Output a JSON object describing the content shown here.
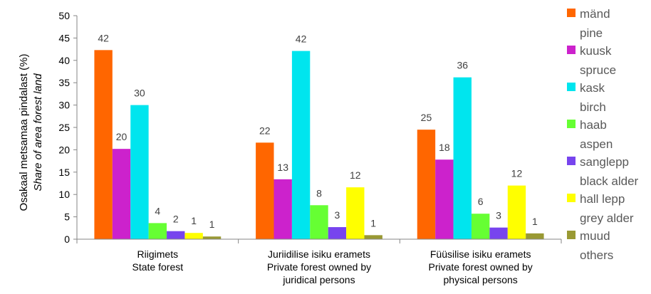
{
  "chart_data": {
    "type": "bar",
    "ylabel": "Osakaal metsamaa pindalast (%)",
    "ylabel_secondary": "Share of area forest land",
    "ylim": [
      0,
      50
    ],
    "yticks": [
      0,
      5,
      10,
      15,
      20,
      25,
      30,
      35,
      40,
      45,
      50
    ],
    "grid": false,
    "legend_position": "right",
    "categories": [
      [
        "Riigimets",
        "State forest"
      ],
      [
        "Juriidilise isiku eramets",
        "Private forest owned by",
        "juridical persons"
      ],
      [
        "Füüsilise isiku eramets",
        "Private forest owned by",
        "physical persons"
      ]
    ],
    "series": [
      {
        "name": "mänd",
        "name_en": "pine",
        "color": "#ff6600",
        "values": [
          42.3,
          21.6,
          24.5
        ],
        "labels": [
          "42",
          "22",
          "25"
        ]
      },
      {
        "name": "kuusk",
        "name_en": "spruce",
        "color": "#cc22cc",
        "values": [
          20.2,
          13.4,
          17.8
        ],
        "labels": [
          "20",
          "13",
          "18"
        ]
      },
      {
        "name": "kask",
        "name_en": "birch",
        "color": "#00e5ee",
        "values": [
          30.0,
          42.1,
          36.2
        ],
        "labels": [
          "30",
          "42",
          "36"
        ]
      },
      {
        "name": "haab",
        "name_en": "aspen",
        "color": "#66ff33",
        "values": [
          3.6,
          7.6,
          5.7
        ],
        "labels": [
          "4",
          "8",
          "6"
        ]
      },
      {
        "name": "sanglepp",
        "name_en": "black alder",
        "color": "#7744ee",
        "values": [
          1.8,
          2.7,
          2.6
        ],
        "labels": [
          "2",
          "3",
          "3"
        ]
      },
      {
        "name": "hall lepp",
        "name_en": "grey alder",
        "color": "#ffff00",
        "values": [
          1.4,
          11.6,
          12.0
        ],
        "labels": [
          "1",
          "12",
          "12"
        ]
      },
      {
        "name": "muud",
        "name_en": "others",
        "color": "#999933",
        "values": [
          0.6,
          0.9,
          1.3
        ],
        "labels": [
          "1",
          "1",
          "1"
        ]
      }
    ]
  }
}
